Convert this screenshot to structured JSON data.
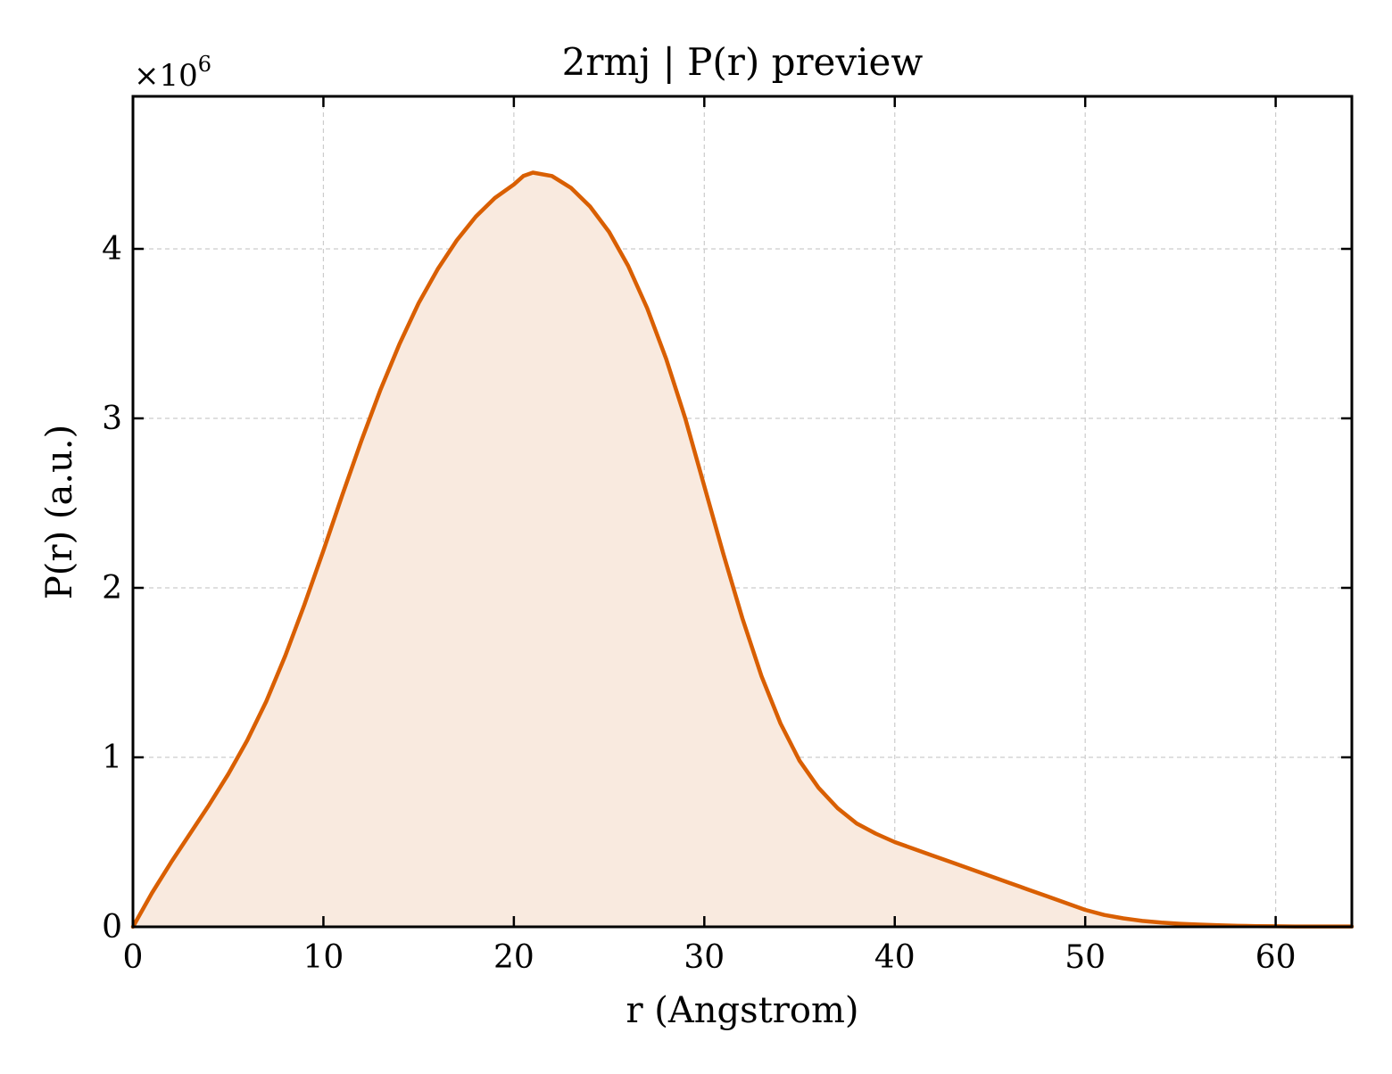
{
  "chart_data": {
    "type": "area",
    "title": "2rmj | P(r) preview",
    "xlabel": "r (Angstrom)",
    "ylabel": "P(r) (a.u.)",
    "y_multiplier_label": "×10",
    "y_multiplier_exponent": "6",
    "xlim": [
      0,
      64
    ],
    "ylim": [
      0,
      4.9
    ],
    "y_scale_factor": 1000000,
    "xticks": [
      0,
      10,
      20,
      30,
      40,
      50,
      60
    ],
    "yticks": [
      0,
      1,
      2,
      3,
      4
    ],
    "grid": true,
    "legend": "none",
    "line_color": "#d95f02",
    "fill_color": "#f9eadf",
    "series": [
      {
        "x": [
          0,
          1,
          2,
          3,
          4,
          5,
          6,
          7,
          8,
          9,
          10,
          11,
          12,
          13,
          14,
          15,
          16,
          17,
          18,
          19,
          20,
          20.5,
          21,
          22,
          23,
          24,
          25,
          26,
          27,
          28,
          29,
          30,
          31,
          32,
          33,
          34,
          35,
          36,
          37,
          38,
          39,
          40,
          41,
          42,
          43,
          44,
          45,
          46,
          47,
          48,
          49,
          50,
          51,
          52,
          53,
          54,
          55,
          56,
          57,
          58,
          59,
          60,
          61,
          62,
          63,
          64
        ],
        "y": [
          0,
          0.2,
          0.38,
          0.55,
          0.72,
          0.9,
          1.1,
          1.33,
          1.6,
          1.9,
          2.22,
          2.55,
          2.87,
          3.17,
          3.44,
          3.68,
          3.88,
          4.05,
          4.19,
          4.3,
          4.38,
          4.43,
          4.45,
          4.43,
          4.36,
          4.25,
          4.1,
          3.9,
          3.65,
          3.35,
          3.0,
          2.6,
          2.2,
          1.82,
          1.48,
          1.2,
          0.98,
          0.82,
          0.7,
          0.61,
          0.55,
          0.5,
          0.46,
          0.42,
          0.38,
          0.34,
          0.3,
          0.26,
          0.22,
          0.18,
          0.14,
          0.1,
          0.07,
          0.05,
          0.035,
          0.025,
          0.018,
          0.013,
          0.009,
          0.006,
          0.004,
          0.003,
          0.002,
          0.002,
          0.002,
          0.002
        ]
      }
    ]
  }
}
